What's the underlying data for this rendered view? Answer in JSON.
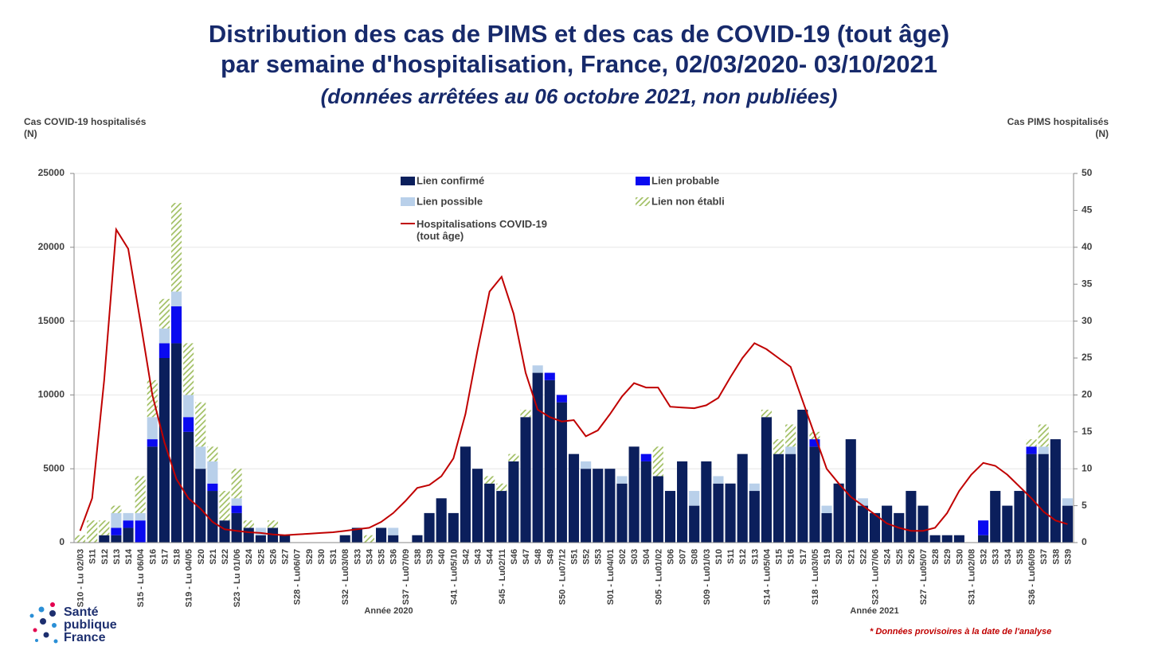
{
  "chart_data": {
    "type": "bar",
    "title": "Distribution des cas de PIMS et des cas de COVID-19 (tout âge)\npar semaine d'hospitalisation, France, 02/03/2020- 03/10/2021",
    "subtitle": "(données arrêtées au 06 octobre 2021, non publiées)",
    "ylabel": "Cas COVID-19 hospitalisés\n(N)",
    "y2label": "Cas PIMS hospitalisés\n(N)",
    "year_labels": [
      "Année 2020",
      "Année 2021"
    ],
    "footnote": "* Données provisoires à la date de l'analyse",
    "logo": "Santé\npublique\nFrance",
    "stacked": true,
    "categories": [
      "S10 - Lu 02/03",
      "S11",
      "S12",
      "S13",
      "S14",
      "S15 - Lu 06/04",
      "S16",
      "S17",
      "S18",
      "S19 - Lu 04/05",
      "S20",
      "S21",
      "S22",
      "S23 - Lu 01/06",
      "S24",
      "S25",
      "S26",
      "S27",
      "S28 - Lu06/07",
      "S29",
      "S30",
      "S31",
      "S32 - Lu03/08",
      "S33",
      "S34",
      "S35",
      "S36",
      "S37 - Lu07/09",
      "S38",
      "S39",
      "S40",
      "S41 - Lu05/10",
      "S42",
      "S43",
      "S44",
      "S45 - Lu02/11",
      "S46",
      "S47",
      "S48",
      "S49",
      "S50 - Lu07/12",
      "S51",
      "S52",
      "S53",
      "S01 - Lu04/01",
      "S02",
      "S03",
      "S04",
      "S05 - Lu01/02",
      "S06",
      "S07",
      "S08",
      "S09 - Lu01/03",
      "S10",
      "S11",
      "S12",
      "S13",
      "S14 - Lu05/04",
      "S15",
      "S16",
      "S17",
      "S18 - Lu03/05",
      "S19",
      "S20",
      "S21",
      "S22",
      "S23 - Lu07/06",
      "S24",
      "S25",
      "S26",
      "S27 - Lu05/07",
      "S28",
      "S29",
      "S30",
      "S31 - Lu02/08",
      "S32",
      "S33",
      "S34",
      "S35",
      "S36 - Lu06/09",
      "S37",
      "S38",
      "S39"
    ],
    "series": [
      {
        "name": "Lien confirmé",
        "color": "#0b1f5c",
        "axis": "y2",
        "values": [
          0,
          0,
          1,
          1,
          2,
          0,
          13,
          25,
          27,
          15,
          10,
          7,
          3,
          4,
          2,
          1,
          2,
          1,
          0,
          0,
          0,
          0,
          1,
          2,
          0,
          2,
          1,
          0,
          1,
          4,
          6,
          4,
          13,
          10,
          8,
          7,
          11,
          17,
          23,
          22,
          19,
          12,
          10,
          10,
          10,
          8,
          13,
          11,
          9,
          7,
          11,
          5,
          11,
          8,
          8,
          12,
          7,
          17,
          12,
          12,
          18,
          13,
          4,
          8,
          14,
          5,
          4,
          5,
          4,
          7,
          5,
          1,
          1,
          1,
          0,
          1,
          7,
          5,
          7,
          12,
          12,
          14,
          5
        ]
      },
      {
        "name": "Lien probable",
        "color": "#0a0af0",
        "axis": "y2",
        "values": [
          0,
          0,
          0,
          1,
          1,
          3,
          1,
          2,
          5,
          2,
          0,
          1,
          0,
          1,
          0,
          0,
          0,
          0,
          0,
          0,
          0,
          0,
          0,
          0,
          0,
          0,
          0,
          0,
          0,
          0,
          0,
          0,
          0,
          0,
          0,
          0,
          0,
          0,
          0,
          1,
          1,
          0,
          0,
          0,
          0,
          0,
          0,
          1,
          0,
          0,
          0,
          0,
          0,
          0,
          0,
          0,
          0,
          0,
          0,
          0,
          0,
          1,
          0,
          0,
          0,
          0,
          0,
          0,
          0,
          0,
          0,
          0,
          0,
          0,
          0,
          2,
          0,
          0,
          0,
          1,
          0,
          0,
          0
        ]
      },
      {
        "name": "Lien possible",
        "color": "#b9d0ea",
        "axis": "y2",
        "values": [
          0,
          0,
          0,
          2,
          1,
          1,
          3,
          2,
          2,
          3,
          3,
          3,
          0,
          1,
          0,
          1,
          0,
          0,
          0,
          0,
          0,
          0,
          0,
          0,
          0,
          0,
          1,
          0,
          0,
          0,
          0,
          0,
          0,
          0,
          0,
          0,
          0,
          0,
          1,
          0,
          0,
          0,
          1,
          0,
          0,
          1,
          0,
          0,
          0,
          0,
          0,
          2,
          0,
          1,
          0,
          0,
          1,
          0,
          0,
          1,
          0,
          0,
          1,
          0,
          0,
          1,
          0,
          0,
          0,
          0,
          0,
          0,
          0,
          0,
          0,
          0,
          0,
          0,
          0,
          0,
          1,
          0,
          1
        ]
      },
      {
        "name": "Lien non établi",
        "color": "#9bbb59",
        "hatch": true,
        "axis": "y2",
        "values": [
          1,
          3,
          2,
          1,
          0,
          5,
          5,
          4,
          12,
          7,
          6,
          2,
          4,
          4,
          1,
          0,
          1,
          0,
          0,
          0,
          0,
          0,
          0,
          0,
          1,
          0,
          0,
          0,
          0,
          0,
          0,
          0,
          0,
          0,
          1,
          1,
          1,
          1,
          0,
          0,
          0,
          0,
          0,
          0,
          0,
          0,
          0,
          0,
          4,
          0,
          0,
          0,
          0,
          0,
          0,
          0,
          0,
          1,
          2,
          3,
          0,
          1,
          0,
          0,
          0,
          0,
          0,
          0,
          0,
          0,
          0,
          0,
          0,
          0,
          0,
          0,
          0,
          0,
          0,
          1,
          3,
          0,
          0
        ]
      },
      {
        "name": "Hospitalisations COVID-19\n(tout âge)",
        "type": "line",
        "color": "#c00000",
        "axis": "y",
        "values": [
          800,
          3000,
          11000,
          21200,
          19900,
          15000,
          10000,
          6800,
          4300,
          3000,
          2300,
          1400,
          900,
          800,
          700,
          650,
          550,
          500,
          550,
          600,
          650,
          700,
          800,
          900,
          1000,
          1400,
          2000,
          2800,
          3700,
          3900,
          4500,
          5700,
          8700,
          13000,
          17000,
          18000,
          15500,
          11500,
          9000,
          8500,
          8200,
          8300,
          7200,
          7600,
          8700,
          9900,
          10800,
          10500,
          10500,
          9200,
          9150,
          9100,
          9300,
          9800,
          11200,
          12500,
          13500,
          13100,
          12500,
          11900,
          9600,
          7300,
          5000,
          4000,
          3100,
          2500,
          1900,
          1300,
          1000,
          800,
          800,
          1000,
          2000,
          3500,
          4600,
          5400,
          5200,
          4600,
          3800,
          3000,
          2100,
          1500,
          1250
        ]
      }
    ],
    "ylim": [
      0,
      25000
    ],
    "yticks": [
      0,
      5000,
      10000,
      15000,
      20000,
      25000
    ],
    "y2lim": [
      0,
      50
    ],
    "y2ticks": [
      0,
      5,
      10,
      15,
      20,
      25,
      30,
      35,
      40,
      45,
      50
    ],
    "grid": true
  }
}
